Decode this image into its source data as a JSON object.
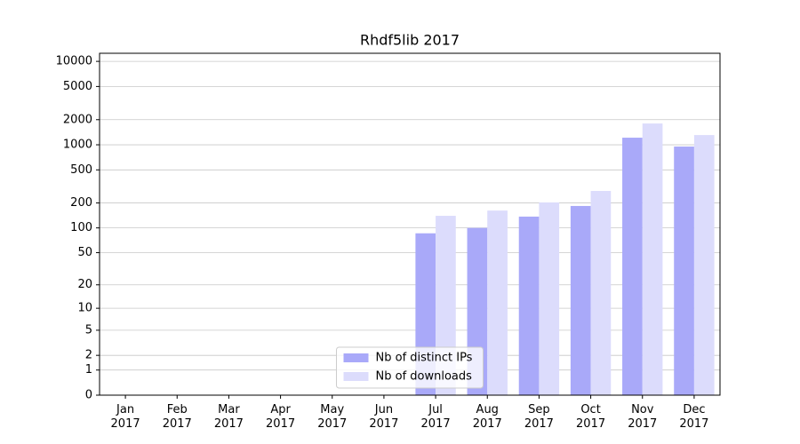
{
  "chart_data": {
    "type": "bar",
    "title": "Rhdf5lib 2017",
    "categories": [
      "Jan 2017",
      "Feb 2017",
      "Mar 2017",
      "Apr 2017",
      "May 2017",
      "Jun 2017",
      "Jul 2017",
      "Aug 2017",
      "Sep 2017",
      "Oct 2017",
      "Nov 2017",
      "Dec 2017"
    ],
    "series": [
      {
        "name": "Nb of distinct IPs",
        "color": "#a9a9f9",
        "values": [
          0,
          0,
          0,
          0,
          0,
          0,
          86,
          100,
          137,
          184,
          1216,
          952
        ]
      },
      {
        "name": "Nb of downloads",
        "color": "#dcdcfc",
        "values": [
          0,
          0,
          0,
          0,
          0,
          0,
          140,
          162,
          203,
          279,
          1800,
          1308
        ]
      }
    ],
    "yscale": "log1p",
    "ylim": [
      0,
      12500
    ],
    "yticks": [
      0,
      1,
      2,
      5,
      10,
      20,
      50,
      100,
      200,
      500,
      1000,
      2000,
      5000,
      10000
    ],
    "grid": true,
    "legend": "lower center"
  }
}
